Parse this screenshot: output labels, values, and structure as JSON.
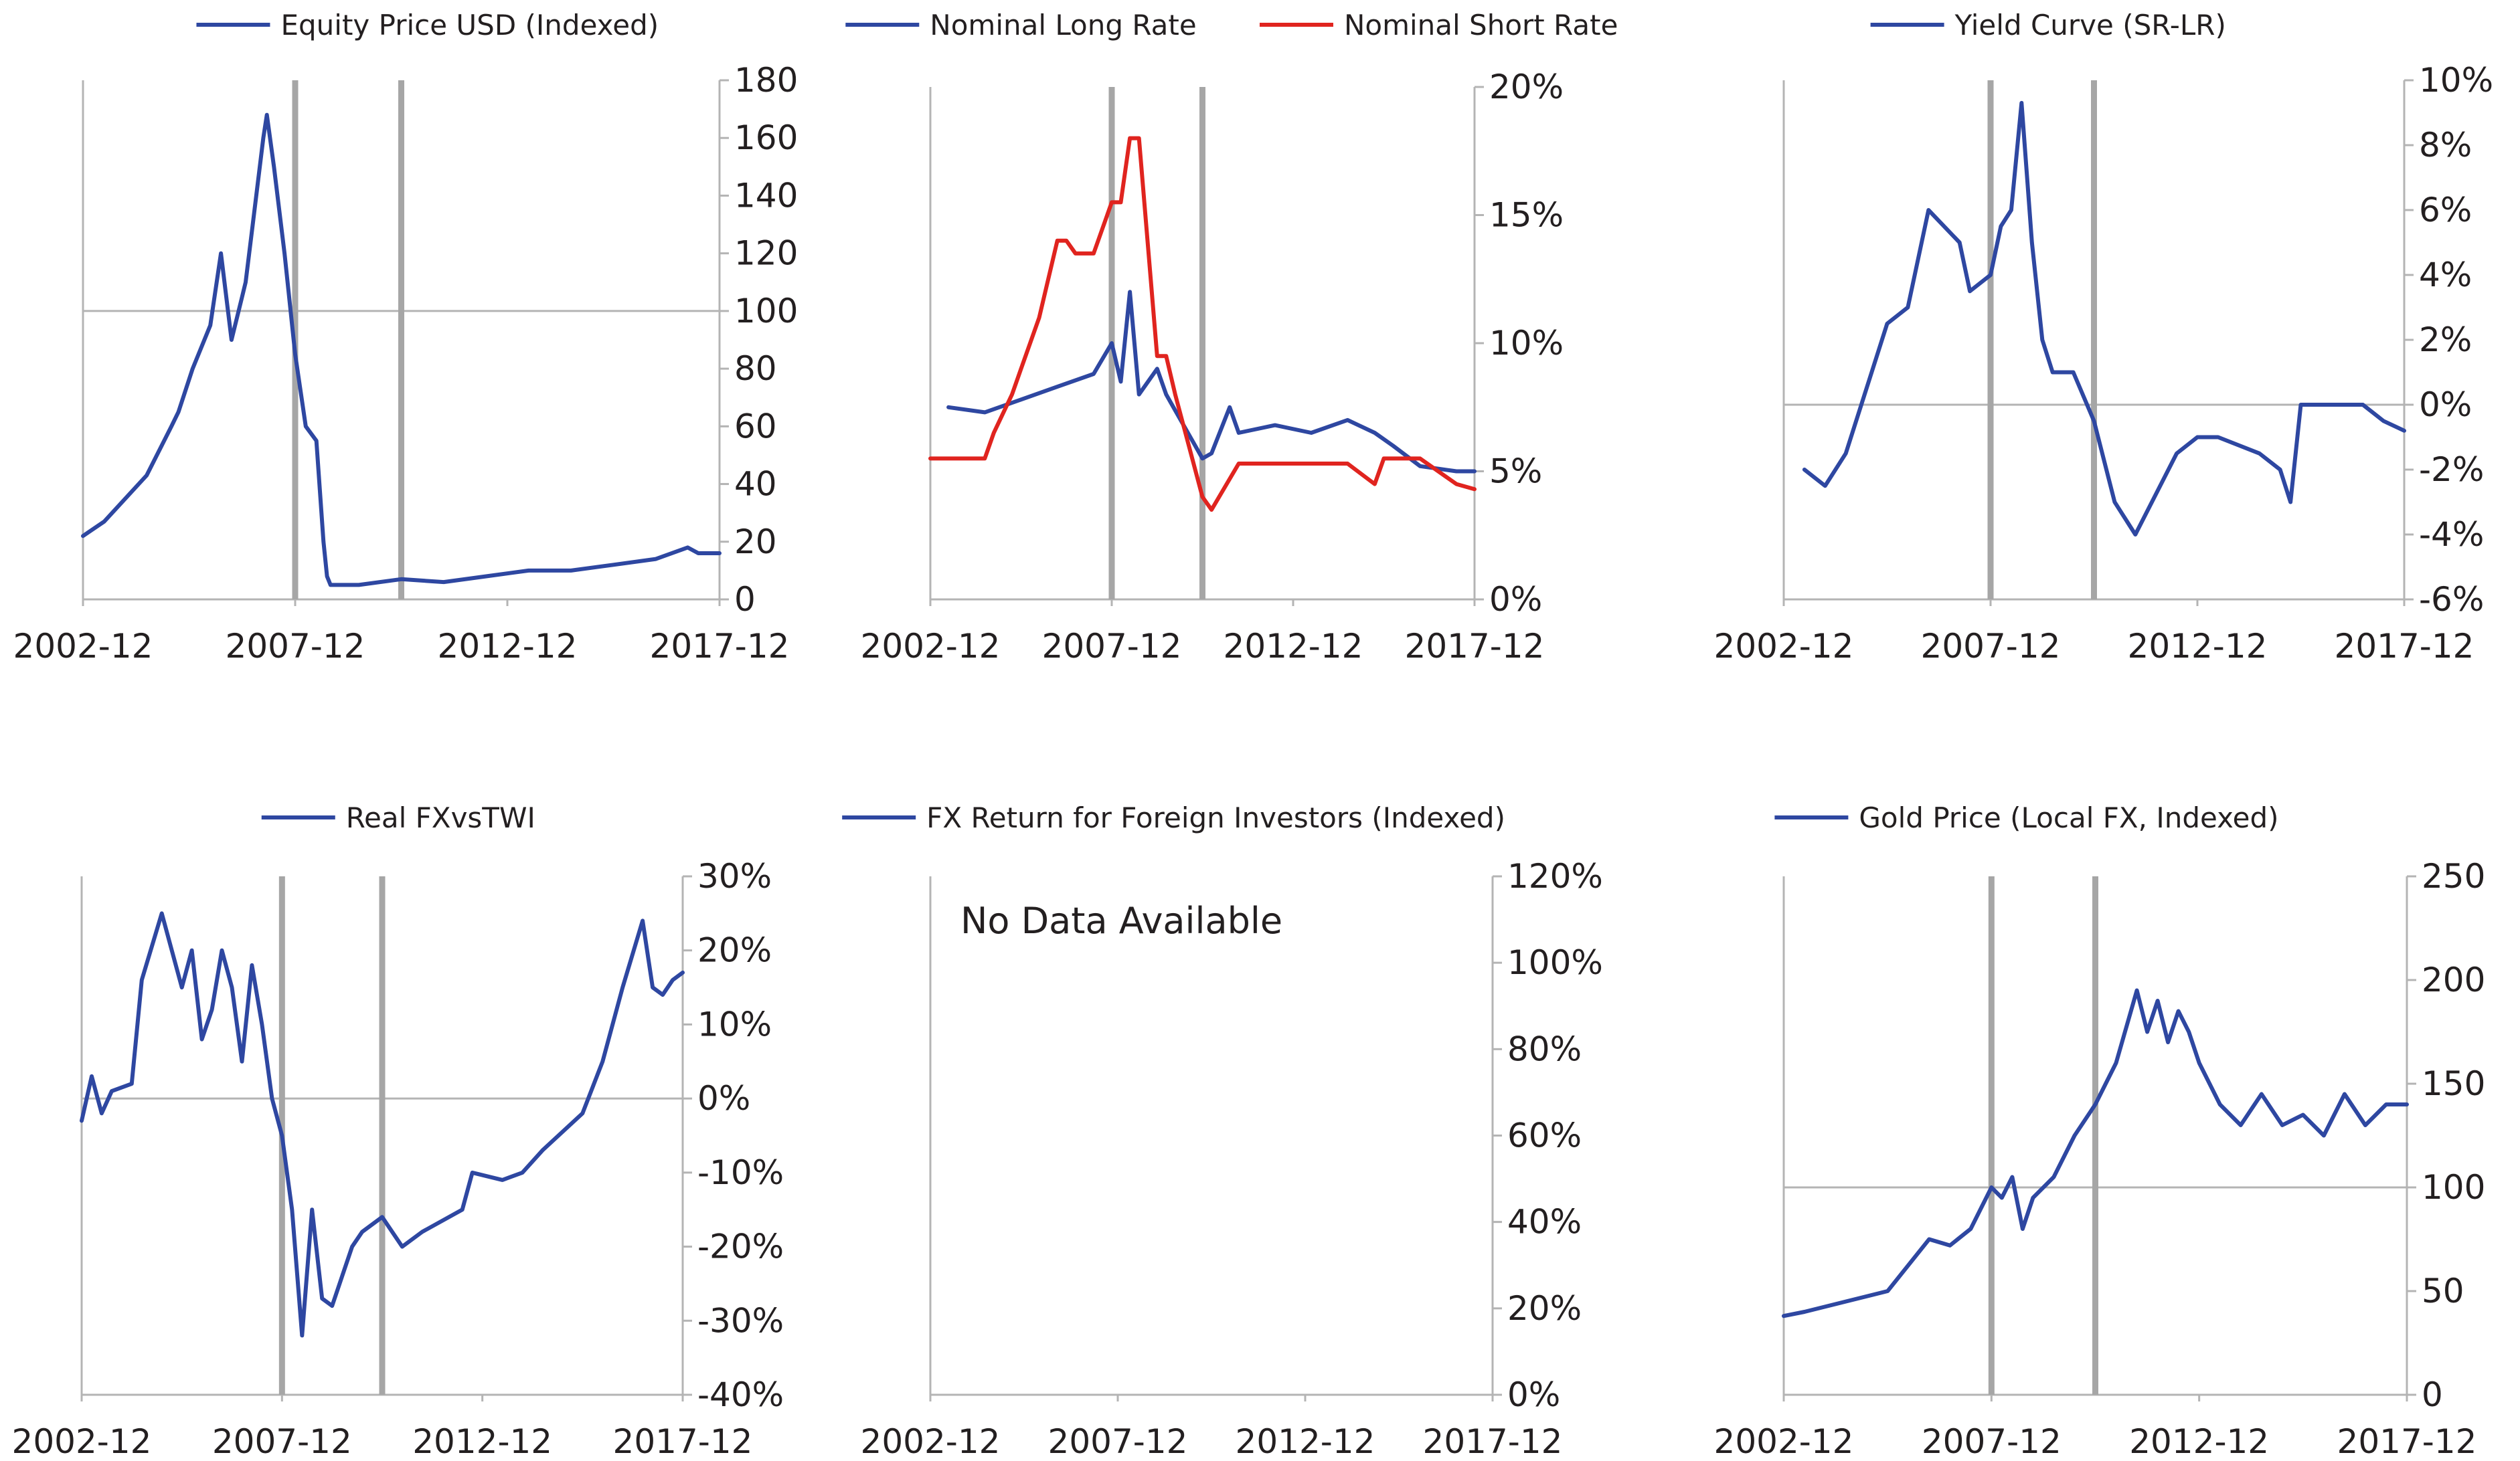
{
  "colors": {
    "blue": "#2e47a1",
    "red": "#e0241f",
    "axis": "#b4b4b4",
    "event_line": "#a6a6a6",
    "text": "#231f20"
  },
  "x_ticks": [
    "2002-12",
    "2007-12",
    "2012-12",
    "2017-12"
  ],
  "chart_data": [
    {
      "type": "line",
      "xlim": [
        "2002-12",
        "2017-12"
      ],
      "ylim": [
        0,
        180
      ],
      "y_ticks": [
        0,
        20,
        40,
        60,
        80,
        100,
        120,
        140,
        160,
        180
      ],
      "y_tick_labels": [
        "0",
        "20",
        "40",
        "60",
        "80",
        "100",
        "120",
        "140",
        "160",
        "180"
      ],
      "reference_line": 100,
      "event_lines": [
        "2007-12",
        "2010-06"
      ],
      "legend_position": "top",
      "series": [
        {
          "name": "Equity Price USD (Indexed)",
          "color": "#2e47a1",
          "x": [
            "2002-12",
            "2003-06",
            "2004-06",
            "2005-01",
            "2005-03",
            "2005-07",
            "2005-12",
            "2006-03",
            "2006-06",
            "2006-09",
            "2006-10",
            "2006-12",
            "2007-03",
            "2007-04",
            "2007-06",
            "2007-09",
            "2007-12",
            "2008-03",
            "2008-06",
            "2008-08",
            "2008-09",
            "2008-10",
            "2009-06",
            "2010-06",
            "2011-06",
            "2012-06",
            "2013-06",
            "2014-06",
            "2015-06",
            "2016-06",
            "2017-03",
            "2017-06",
            "2017-12"
          ],
          "y": [
            22,
            27,
            43,
            60,
            65,
            80,
            95,
            120,
            90,
            105,
            110,
            130,
            160,
            168,
            150,
            120,
            85,
            60,
            55,
            20,
            8,
            5,
            5,
            7,
            6,
            8,
            10,
            10,
            12,
            14,
            18,
            16,
            16
          ]
        }
      ]
    },
    {
      "type": "line",
      "xlim": [
        "2002-12",
        "2017-12"
      ],
      "ylim": [
        0,
        20
      ],
      "y_ticks": [
        0,
        5,
        10,
        15,
        20
      ],
      "y_tick_labels": [
        "0%",
        "5%",
        "10%",
        "15%",
        "20%"
      ],
      "reference_line": null,
      "event_lines": [
        "2007-12",
        "2010-06"
      ],
      "legend_position": "top",
      "series": [
        {
          "name": "Nominal Long Rate",
          "color": "#2e47a1",
          "x": [
            "2003-06",
            "2004-06",
            "2005-06",
            "2006-06",
            "2007-06",
            "2007-12",
            "2008-03",
            "2008-06",
            "2008-09",
            "2009-03",
            "2009-06",
            "2010-06",
            "2010-09",
            "2011-03",
            "2011-06",
            "2012-06",
            "2013-06",
            "2014-06",
            "2015-03",
            "2015-09",
            "2016-06",
            "2017-06",
            "2017-12"
          ],
          "y": [
            7.5,
            7.3,
            7.8,
            8.3,
            8.8,
            10,
            8.5,
            12,
            8,
            9,
            8,
            5.5,
            5.7,
            7.5,
            6.5,
            6.8,
            6.5,
            7,
            6.5,
            6,
            5.2,
            5,
            5
          ]
        },
        {
          "name": "Nominal Short Rate",
          "color": "#e0241f",
          "x": [
            "2002-12",
            "2004-06",
            "2004-09",
            "2005-03",
            "2005-06",
            "2005-12",
            "2006-06",
            "2006-09",
            "2006-12",
            "2007-06",
            "2007-12",
            "2008-03",
            "2008-06",
            "2008-09",
            "2009-03",
            "2009-06",
            "2009-09",
            "2010-06",
            "2010-09",
            "2011-06",
            "2012-06",
            "2013-06",
            "2014-06",
            "2015-03",
            "2015-06",
            "2016-06",
            "2017-06",
            "2017-12"
          ],
          "y": [
            5.5,
            5.5,
            6.5,
            8,
            9,
            11,
            14,
            14,
            13.5,
            13.5,
            15.5,
            15.5,
            18,
            18,
            9.5,
            9.5,
            8,
            4,
            3.5,
            5.3,
            5.3,
            5.3,
            5.3,
            4.5,
            5.5,
            5.5,
            4.5,
            4.3
          ]
        }
      ]
    },
    {
      "type": "line",
      "xlim": [
        "2002-12",
        "2017-12"
      ],
      "ylim": [
        -6,
        10
      ],
      "y_ticks": [
        -6,
        -4,
        -2,
        0,
        2,
        4,
        6,
        8,
        10
      ],
      "y_tick_labels": [
        "-6%",
        "-4%",
        "-2%",
        "0%",
        "2%",
        "4%",
        "6%",
        "8%",
        "10%"
      ],
      "reference_line": 0,
      "event_lines": [
        "2007-12",
        "2010-06"
      ],
      "legend_position": "top",
      "series": [
        {
          "name": "Yield Curve (SR-LR)",
          "color": "#2e47a1",
          "x": [
            "2003-06",
            "2003-12",
            "2004-06",
            "2005-06",
            "2005-12",
            "2006-06",
            "2007-03",
            "2007-06",
            "2007-12",
            "2008-03",
            "2008-06",
            "2008-09",
            "2008-12",
            "2009-03",
            "2009-06",
            "2009-12",
            "2010-06",
            "2010-12",
            "2011-06",
            "2012-06",
            "2012-12",
            "2013-06",
            "2014-06",
            "2014-12",
            "2015-03",
            "2015-06",
            "2016-06",
            "2016-12",
            "2017-06",
            "2017-12"
          ],
          "y": [
            -2,
            -2.5,
            -1.5,
            2.5,
            3,
            6,
            5,
            3.5,
            4,
            5.5,
            6,
            9.3,
            5,
            2,
            1,
            1,
            -0.5,
            -3,
            -4,
            -1.5,
            -1,
            -1,
            -1.5,
            -2,
            -3,
            0,
            0,
            0,
            -0.5,
            -0.8
          ]
        }
      ]
    },
    {
      "type": "line",
      "xlim": [
        "2002-12",
        "2017-12"
      ],
      "ylim": [
        -40,
        30
      ],
      "y_ticks": [
        -40,
        -30,
        -20,
        -10,
        0,
        10,
        20,
        30
      ],
      "y_tick_labels": [
        "-40%",
        "-30%",
        "-20%",
        "-10%",
        "0%",
        "10%",
        "20%",
        "30%"
      ],
      "reference_line": 0,
      "event_lines": [
        "2007-12",
        "2010-06"
      ],
      "legend_position": "top",
      "series": [
        {
          "name": "Real FXvsTWI",
          "color": "#2e47a1",
          "x": [
            "2002-12",
            "2003-03",
            "2003-06",
            "2003-09",
            "2004-03",
            "2004-06",
            "2004-12",
            "2005-06",
            "2005-09",
            "2005-12",
            "2006-03",
            "2006-06",
            "2006-09",
            "2006-12",
            "2007-03",
            "2007-06",
            "2007-09",
            "2007-12",
            "2008-03",
            "2008-06",
            "2008-09",
            "2008-12",
            "2009-03",
            "2009-06",
            "2009-09",
            "2009-12",
            "2010-06",
            "2010-12",
            "2011-06",
            "2012-06",
            "2012-09",
            "2013-06",
            "2013-12",
            "2014-06",
            "2015-06",
            "2015-12",
            "2016-06",
            "2016-12",
            "2017-03",
            "2017-06",
            "2017-09",
            "2017-12"
          ],
          "y": [
            -3,
            3,
            -2,
            1,
            2,
            16,
            25,
            15,
            20,
            8,
            12,
            20,
            15,
            5,
            18,
            10,
            0,
            -5,
            -15,
            -32,
            -15,
            -27,
            -28,
            -24,
            -20,
            -18,
            -16,
            -20,
            -18,
            -15,
            -10,
            -11,
            -10,
            -7,
            -2,
            5,
            15,
            24,
            15,
            14,
            16,
            17
          ]
        }
      ]
    },
    {
      "type": "line",
      "xlim": [
        "2002-12",
        "2017-12"
      ],
      "ylim": [
        0,
        120
      ],
      "y_ticks": [
        0,
        20,
        40,
        60,
        80,
        100,
        120
      ],
      "y_tick_labels": [
        "0%",
        "20%",
        "40%",
        "60%",
        "80%",
        "100%",
        "120%"
      ],
      "reference_line": null,
      "event_lines": [],
      "legend_position": "top",
      "annotation": "No Data Available",
      "series": [
        {
          "name": "FX Return for Foreign Investors (Indexed)",
          "color": "#2e47a1",
          "x": [],
          "y": []
        }
      ]
    },
    {
      "type": "line",
      "xlim": [
        "2002-12",
        "2017-12"
      ],
      "ylim": [
        0,
        250
      ],
      "y_ticks": [
        0,
        50,
        100,
        150,
        200,
        250
      ],
      "y_tick_labels": [
        "0",
        "50",
        "100",
        "150",
        "200",
        "250"
      ],
      "reference_line": 100,
      "event_lines": [
        "2007-12",
        "2010-06"
      ],
      "legend_position": "top",
      "series": [
        {
          "name": "Gold Price (Local FX, Indexed)",
          "color": "#2e47a1",
          "x": [
            "2002-12",
            "2003-06",
            "2004-06",
            "2005-06",
            "2006-06",
            "2006-12",
            "2007-06",
            "2007-12",
            "2008-03",
            "2008-06",
            "2008-09",
            "2008-12",
            "2009-03",
            "2009-06",
            "2009-12",
            "2010-06",
            "2010-12",
            "2011-06",
            "2011-09",
            "2011-12",
            "2012-03",
            "2012-06",
            "2012-09",
            "2012-12",
            "2013-06",
            "2013-12",
            "2014-06",
            "2014-12",
            "2015-06",
            "2015-12",
            "2016-06",
            "2016-12",
            "2017-06",
            "2017-12"
          ],
          "y": [
            38,
            40,
            45,
            50,
            75,
            72,
            80,
            100,
            95,
            105,
            80,
            95,
            100,
            105,
            125,
            140,
            160,
            195,
            175,
            190,
            170,
            185,
            175,
            160,
            140,
            130,
            145,
            130,
            135,
            125,
            145,
            130,
            140,
            140
          ]
        }
      ]
    }
  ]
}
